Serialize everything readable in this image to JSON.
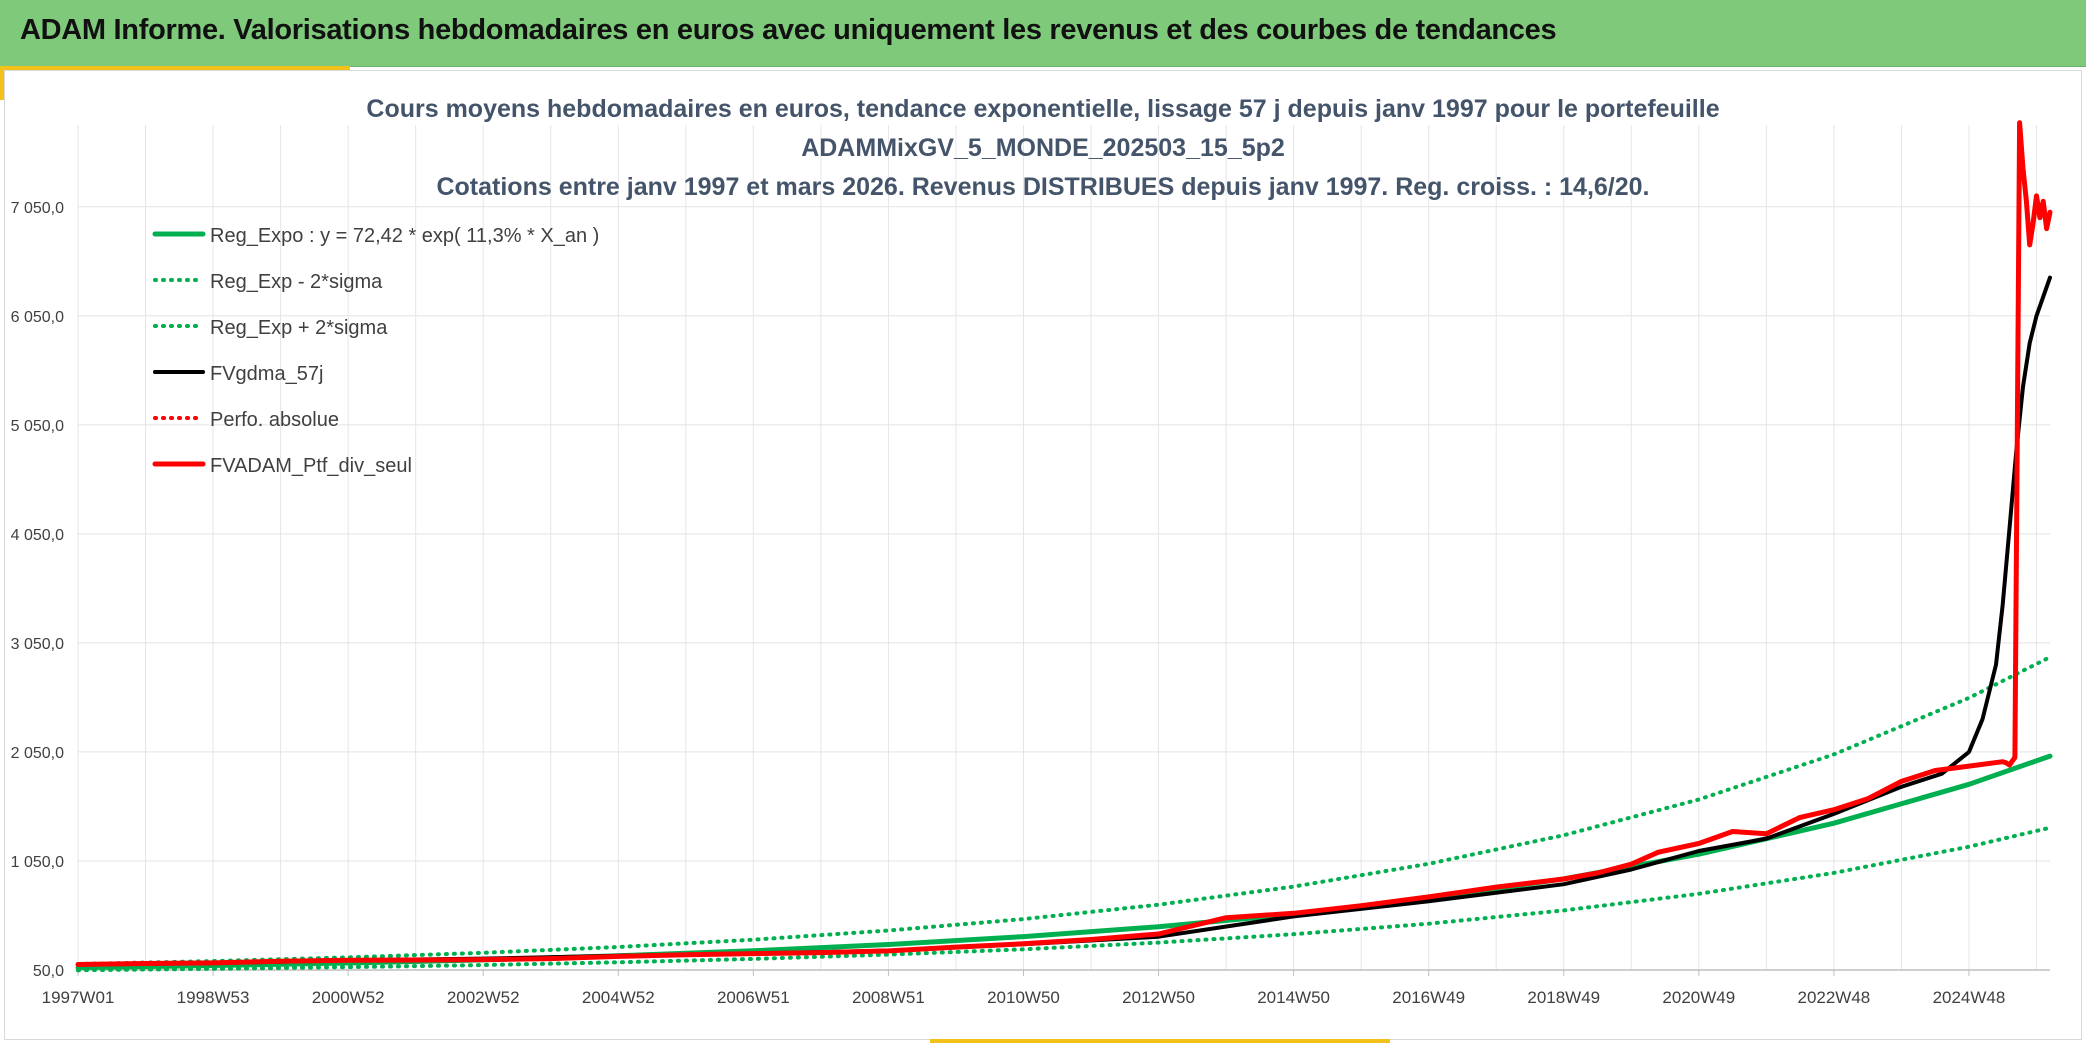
{
  "header": {
    "title": "ADAM Informe. Valorisations hebdomadaires en euros avec uniquement les revenus et des courbes de tendances"
  },
  "chart_data": {
    "type": "line",
    "title_lines": [
      "Cours moyens hebdomadaires en euros, tendance exponentielle, lissage 57 j depuis janv 1997 pour le portefeuille",
      "ADAMMixGV_5_MONDE_202503_15_5p2",
      "Cotations entre janv 1997 et mars 2026. Revenus DISTRIBUES depuis janv 1997. Reg. croiss. : 14,6/20."
    ],
    "xlabel": "",
    "ylabel": "",
    "x_range": [
      1997.0,
      2026.2
    ],
    "ylim": [
      50,
      7800
    ],
    "y_ticks": [
      50,
      1050,
      2050,
      3050,
      4050,
      5050,
      6050,
      7050
    ],
    "y_tick_labels": [
      "50,0",
      "1 050,0",
      "2 050,0",
      "3 050,0",
      "4 050,0",
      "5 050,0",
      "6 050,0",
      "7 050,0"
    ],
    "x_ticks": [
      1997.0,
      1999.0,
      2001.0,
      2003.0,
      2005.0,
      2007.0,
      2009.0,
      2011.0,
      2013.0,
      2015.0,
      2017.0,
      2019.0,
      2021.0,
      2023.0,
      2025.0
    ],
    "x_tick_labels": [
      "1997W01",
      "1998W53",
      "2000W52",
      "2002W52",
      "2004W52",
      "2006W51",
      "2008W51",
      "2010W50",
      "2012W50",
      "2014W50",
      "2016W49",
      "2018W49",
      "2020W49",
      "2022W48",
      "2024W48"
    ],
    "grid": true,
    "legend_position": "top-left",
    "series": [
      {
        "name": "Reg_Expo : y = 72,42 * exp( 11,3% *  X_an )",
        "color": "#00b050",
        "style": "solid",
        "width": 5,
        "x": [
          1997,
          1999,
          2001,
          2003,
          2005,
          2007,
          2009,
          2011,
          2013,
          2015,
          2017,
          2019,
          2021,
          2023,
          2025,
          2026.2
        ],
        "values": [
          72,
          91,
          114,
          143,
          180,
          226,
          284,
          356,
          447,
          562,
          705,
          886,
          1112,
          1396,
          1753,
          2012
        ]
      },
      {
        "name": "Reg_Exp - 2*sigma",
        "color": "#00b050",
        "style": "dotted",
        "width": 4,
        "x": [
          1997,
          1999,
          2001,
          2003,
          2005,
          2007,
          2009,
          2011,
          2013,
          2015,
          2017,
          2019,
          2021,
          2023,
          2025,
          2026.2
        ],
        "values": [
          48,
          61,
          77,
          96,
          121,
          152,
          191,
          240,
          301,
          378,
          475,
          597,
          749,
          941,
          1181,
          1355
        ]
      },
      {
        "name": "Reg_Exp + 2*sigma",
        "color": "#00b050",
        "style": "dotted",
        "width": 4,
        "x": [
          1997,
          1999,
          2001,
          2003,
          2005,
          2007,
          2009,
          2011,
          2013,
          2015,
          2017,
          2019,
          2021,
          2023,
          2025,
          2026.2
        ],
        "values": [
          105,
          132,
          166,
          208,
          261,
          328,
          412,
          517,
          649,
          815,
          1024,
          1286,
          1614,
          2027,
          2546,
          2920
        ]
      },
      {
        "name": "FVgdma_57j",
        "color": "#000000",
        "style": "solid",
        "width": 4,
        "x": [
          1997,
          1999,
          2001,
          2003,
          2005,
          2007,
          2009,
          2011,
          2013,
          2015,
          2017,
          2019,
          2020,
          2021,
          2022,
          2023,
          2024,
          2024.6,
          2025.0,
          2025.2,
          2025.4,
          2025.5,
          2025.6,
          2025.7,
          2025.8,
          2025.9,
          2026.0,
          2026.2
        ],
        "values": [
          100,
          113,
          139,
          155,
          180,
          200,
          228,
          287,
          355,
          542,
          680,
          837,
          972,
          1141,
          1255,
          1482,
          1730,
          1850,
          2050,
          2350,
          2850,
          3400,
          4100,
          4800,
          5400,
          5800,
          6050,
          6400
        ]
      },
      {
        "name": "Perfo. absolue",
        "color": "#ff0000",
        "style": "dotted",
        "width": 4,
        "x": [],
        "values": []
      },
      {
        "name": "FVADAM_Ptf_div_seul",
        "color": "#ff0000",
        "style": "solid",
        "width": 5,
        "x": [
          1997,
          1998,
          1999,
          2000,
          2001,
          2002,
          2003,
          2004,
          2005,
          2006,
          2007,
          2008,
          2009,
          2010,
          2011,
          2012,
          2013,
          2014,
          2015,
          2016,
          2017,
          2018,
          2019,
          2019.5,
          2020,
          2020.4,
          2021,
          2021.5,
          2022,
          2022.5,
          2023,
          2023.5,
          2024,
          2024.5,
          2025.0,
          2025.5,
          2025.55,
          2025.6,
          2025.68,
          2025.75,
          2025.8,
          2025.85,
          2025.9,
          2025.95,
          2026.0,
          2026.05,
          2026.1,
          2026.15,
          2026.2
        ],
        "values": [
          100,
          110,
          115,
          130,
          140,
          142,
          145,
          155,
          175,
          190,
          200,
          210,
          225,
          260,
          290,
          330,
          380,
          530,
          570,
          640,
          720,
          810,
          885,
          940,
          1020,
          1130,
          1210,
          1320,
          1300,
          1450,
          1520,
          1620,
          1780,
          1880,
          1920,
          1960,
          1950,
          1930,
          2000,
          7820,
          7400,
          7100,
          6700,
          6900,
          7150,
          6950,
          7100,
          6850,
          7000
        ]
      }
    ]
  }
}
